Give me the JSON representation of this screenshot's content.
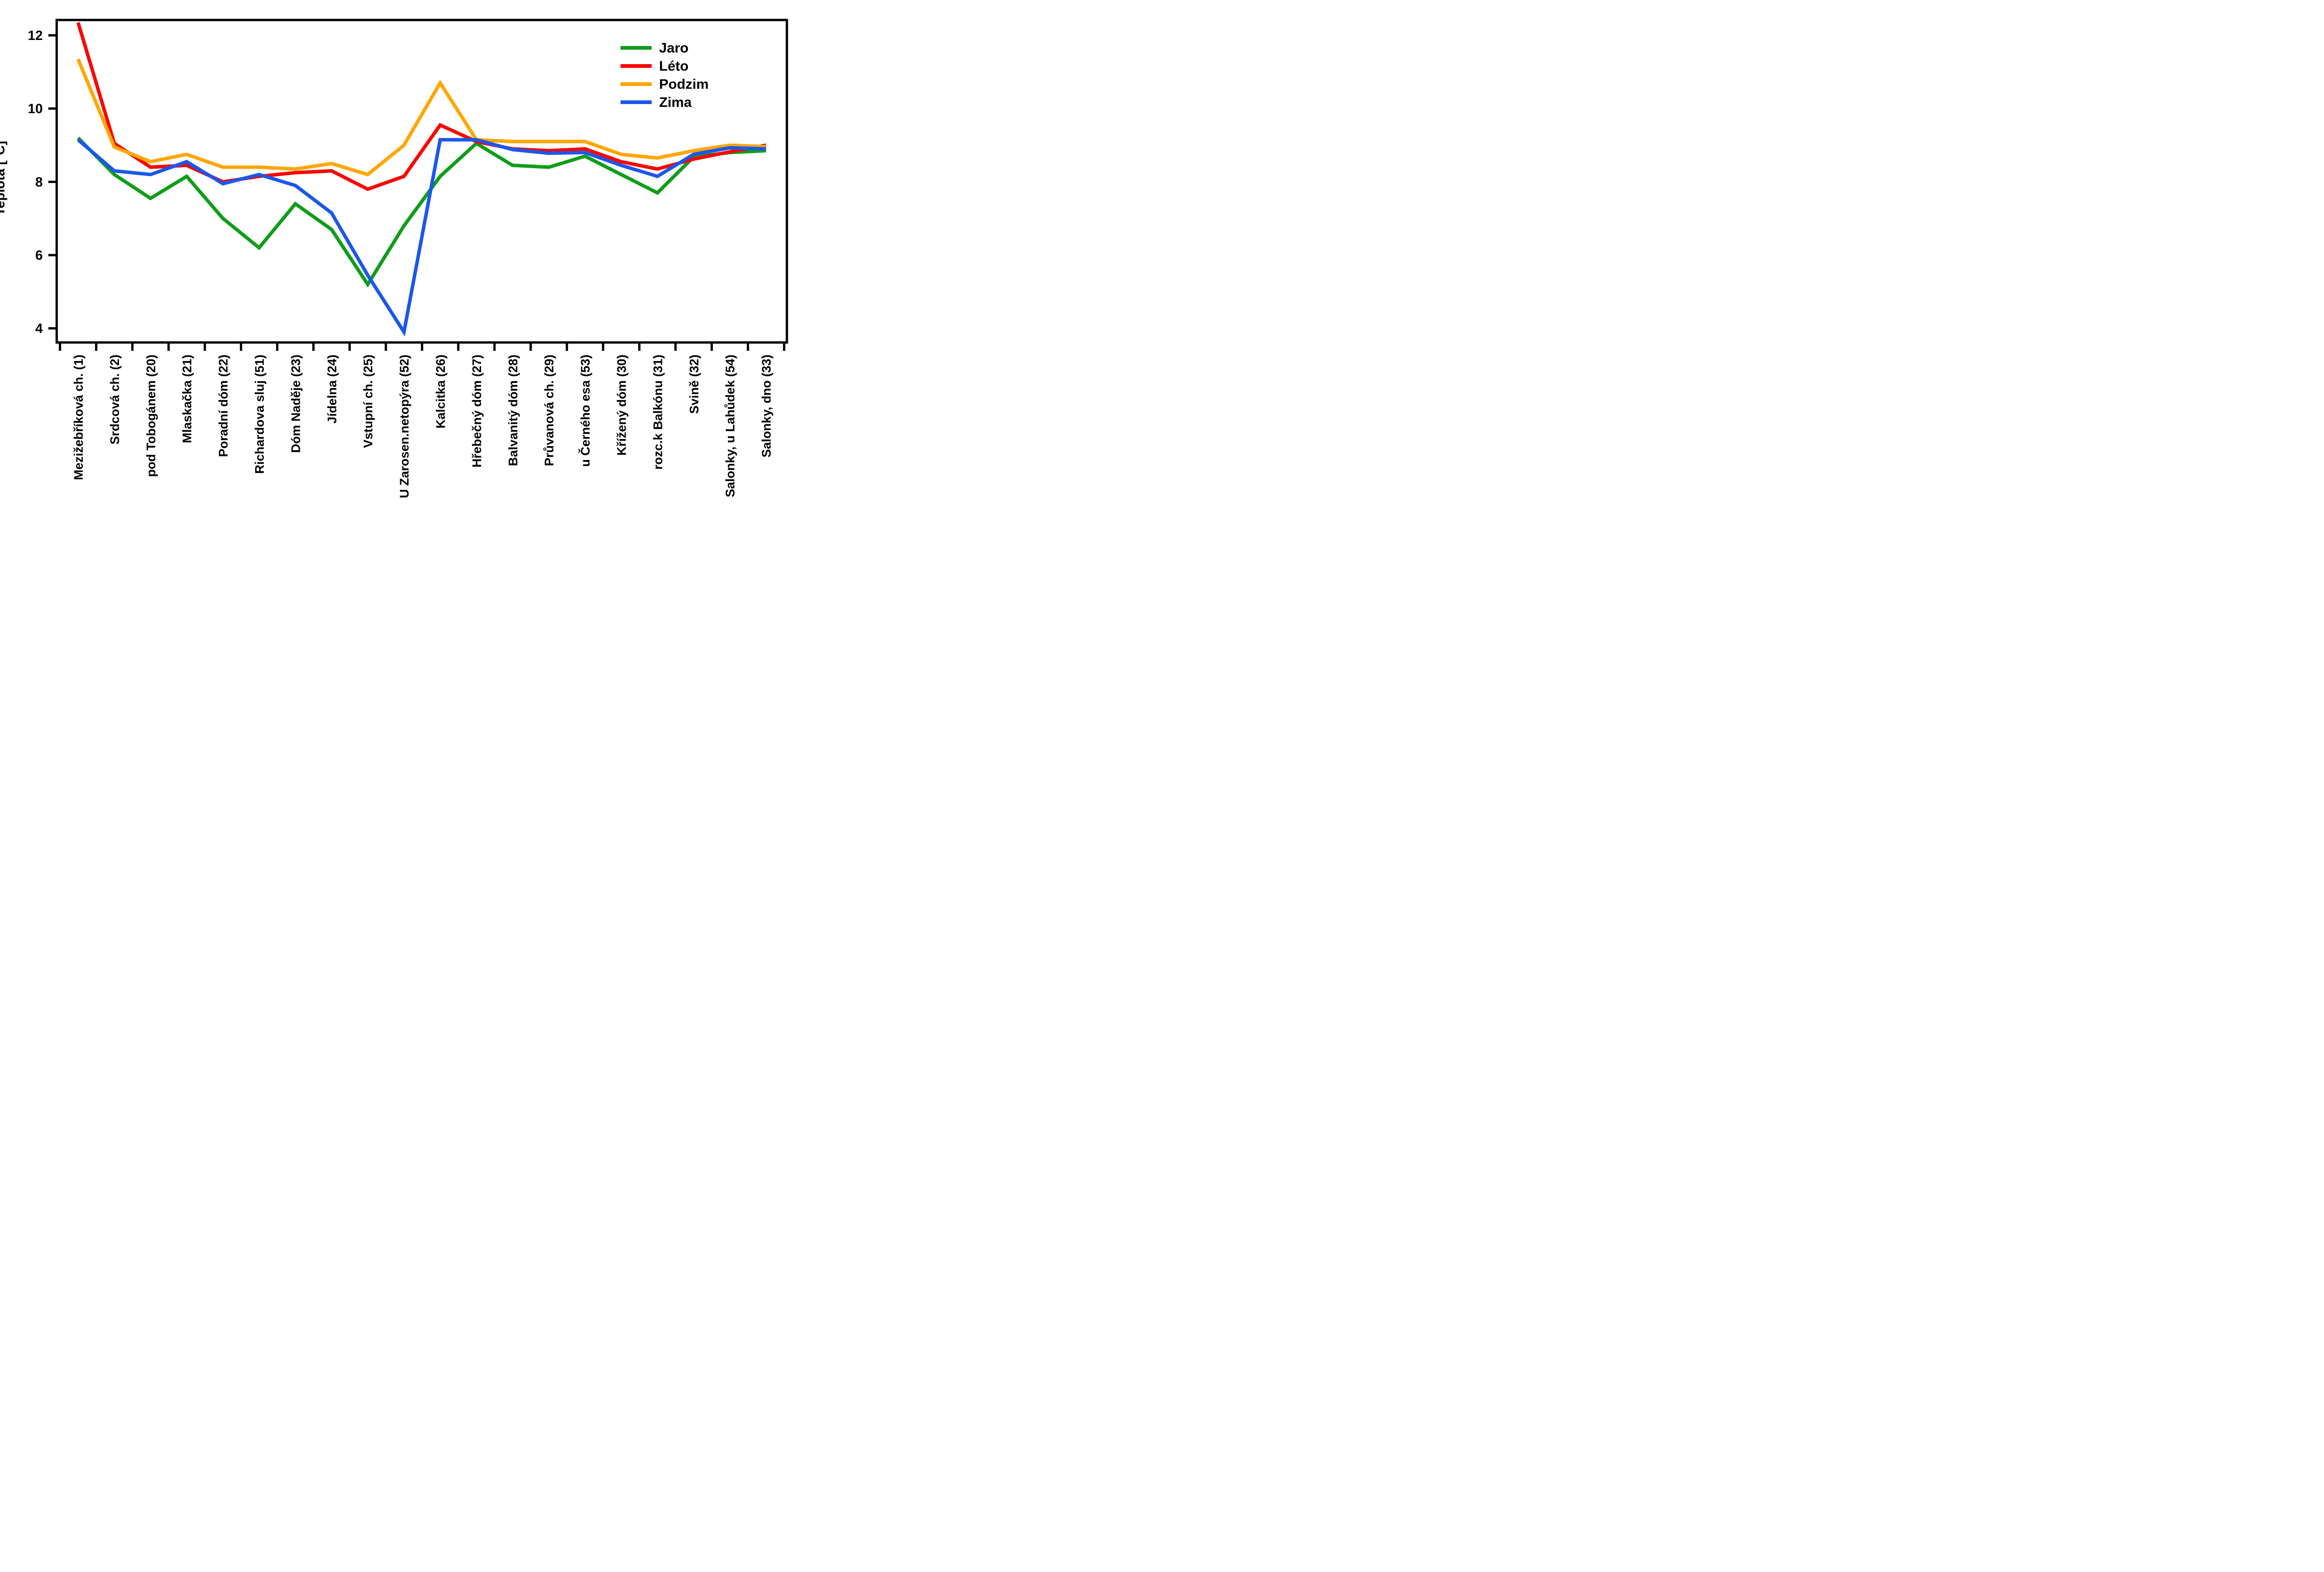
{
  "chart_data": {
    "type": "line",
    "title": "",
    "xlabel": "",
    "ylabel": "Teplota [°C]",
    "ylim": [
      3.6,
      12.45
    ],
    "yticks": [
      4,
      6,
      8,
      10,
      12
    ],
    "grid": false,
    "legend_position": "top-right",
    "categories": [
      "Mezižebříková ch. (1)",
      "Srdcová ch. (2)",
      "pod Tobogánem (20)",
      "Mlaskačka (21)",
      "Poradní dóm (22)",
      "Richardova sluj (51)",
      "Dóm Naděje (23)",
      "Jídelna (24)",
      "Vstupní ch. (25)",
      "U Zarosen.netopýra (52)",
      "Kalcitka (26)",
      "Hřebečný dóm (27)",
      "Balvanitý dóm (28)",
      "Průvanová ch. (29)",
      "u Černého esa (53)",
      "Křížený dóm (30)",
      "rozc.k Balkónu (31)",
      "Svině (32)",
      "Salonky, u Lahůdek (54)",
      "Salonky, dno (33)"
    ],
    "series": [
      {
        "name": "Jaro",
        "color": "#0f9d1a",
        "values": [
          9.2,
          8.2,
          7.55,
          8.15,
          7.0,
          6.2,
          7.4,
          6.7,
          5.2,
          6.8,
          8.15,
          9.05,
          8.45,
          8.4,
          8.7,
          8.2,
          7.7,
          8.68,
          8.8,
          8.85
        ]
      },
      {
        "name": "Léto",
        "color": "#fa0500",
        "values": [
          12.35,
          9.05,
          8.4,
          8.45,
          8.0,
          8.15,
          8.25,
          8.3,
          7.8,
          8.15,
          9.55,
          9.1,
          8.9,
          8.85,
          8.9,
          8.55,
          8.35,
          8.62,
          8.82,
          9.0
        ]
      },
      {
        "name": "Podzim",
        "color": "#ffa600",
        "values": [
          11.35,
          8.95,
          8.55,
          8.75,
          8.4,
          8.4,
          8.35,
          8.5,
          8.2,
          9.0,
          10.7,
          9.15,
          9.1,
          9.1,
          9.1,
          8.75,
          8.65,
          8.85,
          9.0,
          8.96
        ]
      },
      {
        "name": "Zima",
        "color": "#1b57eb",
        "values": [
          9.15,
          8.3,
          8.2,
          8.55,
          7.95,
          8.2,
          7.9,
          7.15,
          5.45,
          3.9,
          9.15,
          9.15,
          8.88,
          8.78,
          8.8,
          8.45,
          8.15,
          8.75,
          8.93,
          8.9
        ]
      }
    ]
  }
}
